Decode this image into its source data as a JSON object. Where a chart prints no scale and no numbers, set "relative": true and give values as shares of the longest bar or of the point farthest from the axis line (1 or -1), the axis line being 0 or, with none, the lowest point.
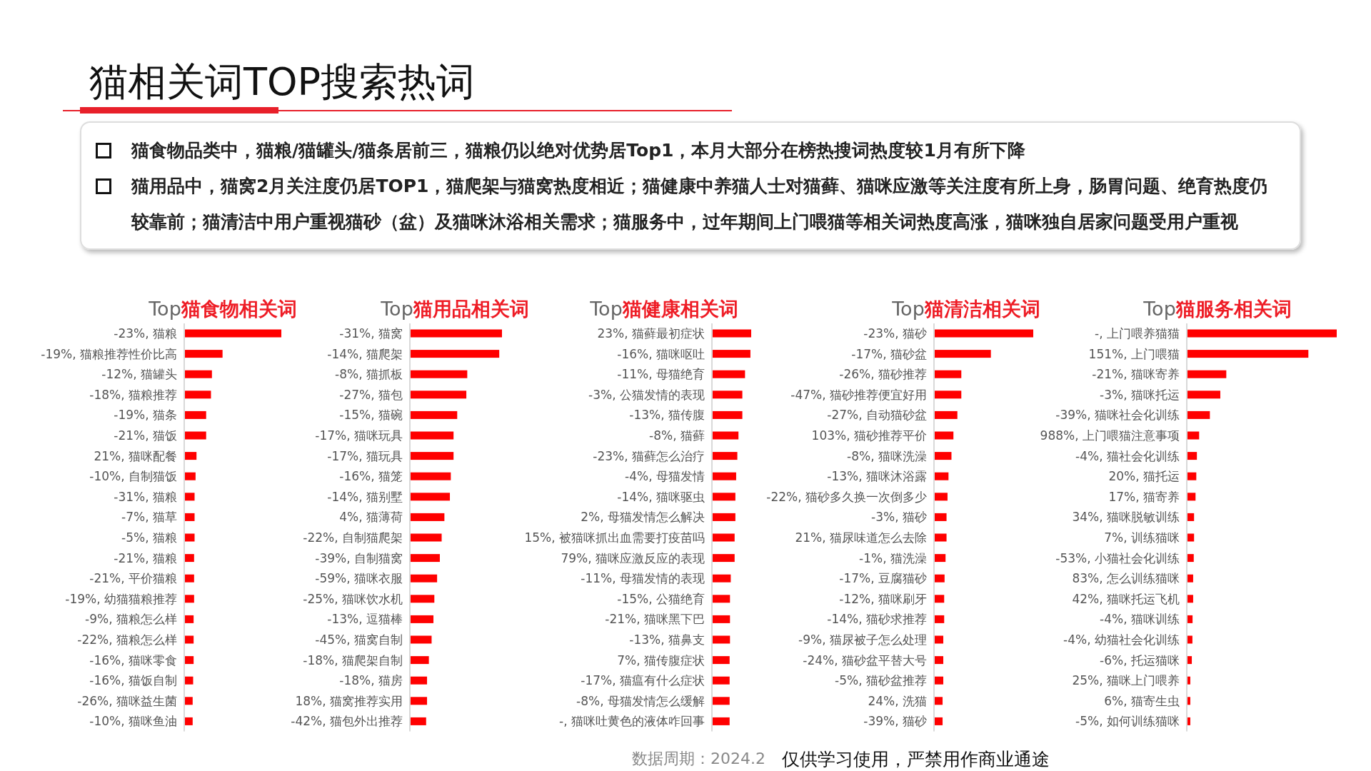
{
  "chart_data": [
    {
      "type": "other",
      "title": "猫相关词TOP搜索热词",
      "annotations": [
        "猫食物品类中，猫粮/猫罐头/猫条居前三，猫粮仍以绝对优势居Top1，本月大部分在榜热搜词热度较1月有所下降",
        "猫用品中，猫窝2月关注度仍居TOP1，猫爬架与猫窝热度相近；猫健康中养猫人士对猫藓、猫咪应激等关注度有所上身，肠胃问题、绝育热度仍较靠前；猫清洁中用户重视猫砂（盆）及猫咪沐浴相关需求；猫服务中，过年期间上门喂猫等相关词热度高涨，猫咪独自居家问题受用户重视",
        "数据周期：2024.2",
        "仅供学习使用，严禁用作商业通途"
      ]
    },
    {
      "type": "bar",
      "orientation": "horizontal",
      "relative": true,
      "color": "#ff0000",
      "title": "Top猫食物相关词",
      "categories": [
        "-23%, 猫粮",
        "-19%, 猫粮推荐性价比高",
        "-12%, 猫罐头",
        "-18%, 猫粮推荐",
        "-19%, 猫条",
        "-21%, 猫饭",
        "21%, 猫咪配餐",
        "-10%, 自制猫饭",
        "-31%, 猫粮",
        "-7%, 猫草",
        "-5%, 猫粮",
        "-21%, 猫粮",
        "-21%, 平价猫粮",
        "-19%, 幼猫猫粮推荐",
        "-9%, 猫粮怎么样",
        "-22%, 猫粮怎么样",
        "-16%, 猫咪零食",
        "-16%, 猫饭自制",
        "-26%, 猫咪益生菌",
        "-10%, 猫咪鱼油"
      ],
      "values": [
        1,
        0.39,
        0.28,
        0.27,
        0.22,
        0.22,
        0.12,
        0.11,
        0.1,
        0.1,
        0.1,
        0.095,
        0.095,
        0.095,
        0.09,
        0.09,
        0.09,
        0.085,
        0.08,
        0.08
      ]
    },
    {
      "type": "bar",
      "orientation": "horizontal",
      "relative": true,
      "color": "#ff0000",
      "title": "Top猫用品相关词",
      "categories": [
        "-31%, 猫窝",
        "-14%, 猫爬架",
        "-8%, 猫抓板",
        "-27%, 猫包",
        "-15%, 猫碗",
        "-17%, 猫咪玩具",
        "-17%, 猫玩具",
        "-16%, 猫笼",
        "-14%, 猫别墅",
        "4%, 猫薄荷",
        "-22%, 自制猫爬架",
        "-39%, 自制猫窝",
        "-59%, 猫咪衣服",
        "-25%, 猫咪饮水机",
        "-13%, 逗猫棒",
        "-45%, 猫窝自制",
        "-18%, 猫爬架自制",
        "-18%, 猫房",
        "18%, 猫窝推荐实用",
        "-42%, 猫包外出推荐"
      ],
      "values": [
        1,
        0.97,
        0.62,
        0.61,
        0.51,
        0.47,
        0.47,
        0.44,
        0.43,
        0.37,
        0.34,
        0.32,
        0.29,
        0.26,
        0.25,
        0.23,
        0.2,
        0.18,
        0.18,
        0.17
      ]
    },
    {
      "type": "bar",
      "orientation": "horizontal",
      "relative": true,
      "color": "#ff0000",
      "title": "Top猫健康相关词",
      "categories": [
        "23%, 猫藓最初症状",
        "-16%, 猫咪呕吐",
        "-11%, 母猫绝育",
        "-3%, 公猫发情的表现",
        "-13%, 猫传腹",
        "-8%, 猫藓",
        "-23%, 猫藓怎么治疗",
        "-4%, 母猫发情",
        "-14%, 猫咪驱虫",
        "2%, 母猫发情怎么解决",
        "15%, 被猫咪抓出血需要打疫苗吗",
        "79%, 猫咪应激反应的表现",
        "-11%, 母猫发情的表现",
        "-15%, 公猫绝育",
        "-21%, 猫咪黑下巴",
        "-13%, 猫鼻支",
        "7%, 猫传腹症状",
        "-17%, 猫瘟有什么症状",
        "-8%, 母猫发情怎么缓解",
        "-, 猫咪吐黄色的液体咋回事"
      ],
      "values": [
        1,
        0.98,
        0.84,
        0.77,
        0.77,
        0.67,
        0.64,
        0.61,
        0.59,
        0.59,
        0.57,
        0.57,
        0.47,
        0.45,
        0.45,
        0.45,
        0.44,
        0.44,
        0.44,
        0.44
      ]
    },
    {
      "type": "bar",
      "orientation": "horizontal",
      "relative": true,
      "color": "#ff0000",
      "title": "Top猫清洁相关词",
      "categories": [
        "-23%, 猫砂",
        "-17%, 猫砂盆",
        "-26%, 猫砂推荐",
        "-47%, 猫砂推荐便宜好用",
        "-27%, 自动猫砂盆",
        "103%, 猫砂推荐平价",
        "-8%, 猫咪洗澡",
        "-13%, 猫咪沐浴露",
        "-22%, 猫砂多久换一次倒多少",
        "-3%, 猫砂",
        "21%, 猫尿味道怎么去除",
        "-1%, 猫洗澡",
        "-17%, 豆腐猫砂",
        "-12%, 猫咪刷牙",
        "-14%, 猫砂求推荐",
        "-9%, 猫尿被子怎么处理",
        "-24%, 猫砂盆平替大号",
        "-5%, 猫砂盆推荐",
        "24%, 洗猫",
        "-39%, 猫砂"
      ],
      "values": [
        1,
        0.57,
        0.27,
        0.27,
        0.23,
        0.19,
        0.17,
        0.14,
        0.13,
        0.12,
        0.12,
        0.11,
        0.1,
        0.096,
        0.096,
        0.087,
        0.087,
        0.087,
        0.08,
        0.08
      ]
    },
    {
      "type": "bar",
      "orientation": "horizontal",
      "relative": true,
      "color": "#ff0000",
      "title": "Top猫服务相关词",
      "categories": [
        "-, 上门喂养猫猫",
        "151%, 上门喂猫",
        "-21%, 猫咪寄养",
        "-3%, 猫咪托运",
        "-39%, 猫咪社会化训练",
        "988%, 上门喂猫注意事项",
        "-4%, 猫社会化训练",
        "20%, 猫托运",
        "17%, 猫寄养",
        "34%, 猫咪脱敏训练",
        "7%, 训练猫咪",
        "-53%, 小猫社会化训练",
        "83%, 怎么训练猫咪",
        "42%, 猫咪托运飞机",
        "-4%, 猫咪训练",
        "-4%, 幼猫社会化训练",
        "-6%, 托运猫咪",
        "25%, 猫咪上门喂养",
        "6%, 猫寄生虫",
        "-5%, 如何训练猫咪"
      ],
      "values": [
        1,
        0.81,
        0.26,
        0.22,
        0.15,
        0.078,
        0.063,
        0.059,
        0.054,
        0.044,
        0.044,
        0.042,
        0.038,
        0.038,
        0.034,
        0.033,
        0.029,
        0.019,
        0.019,
        0.019
      ]
    }
  ]
}
